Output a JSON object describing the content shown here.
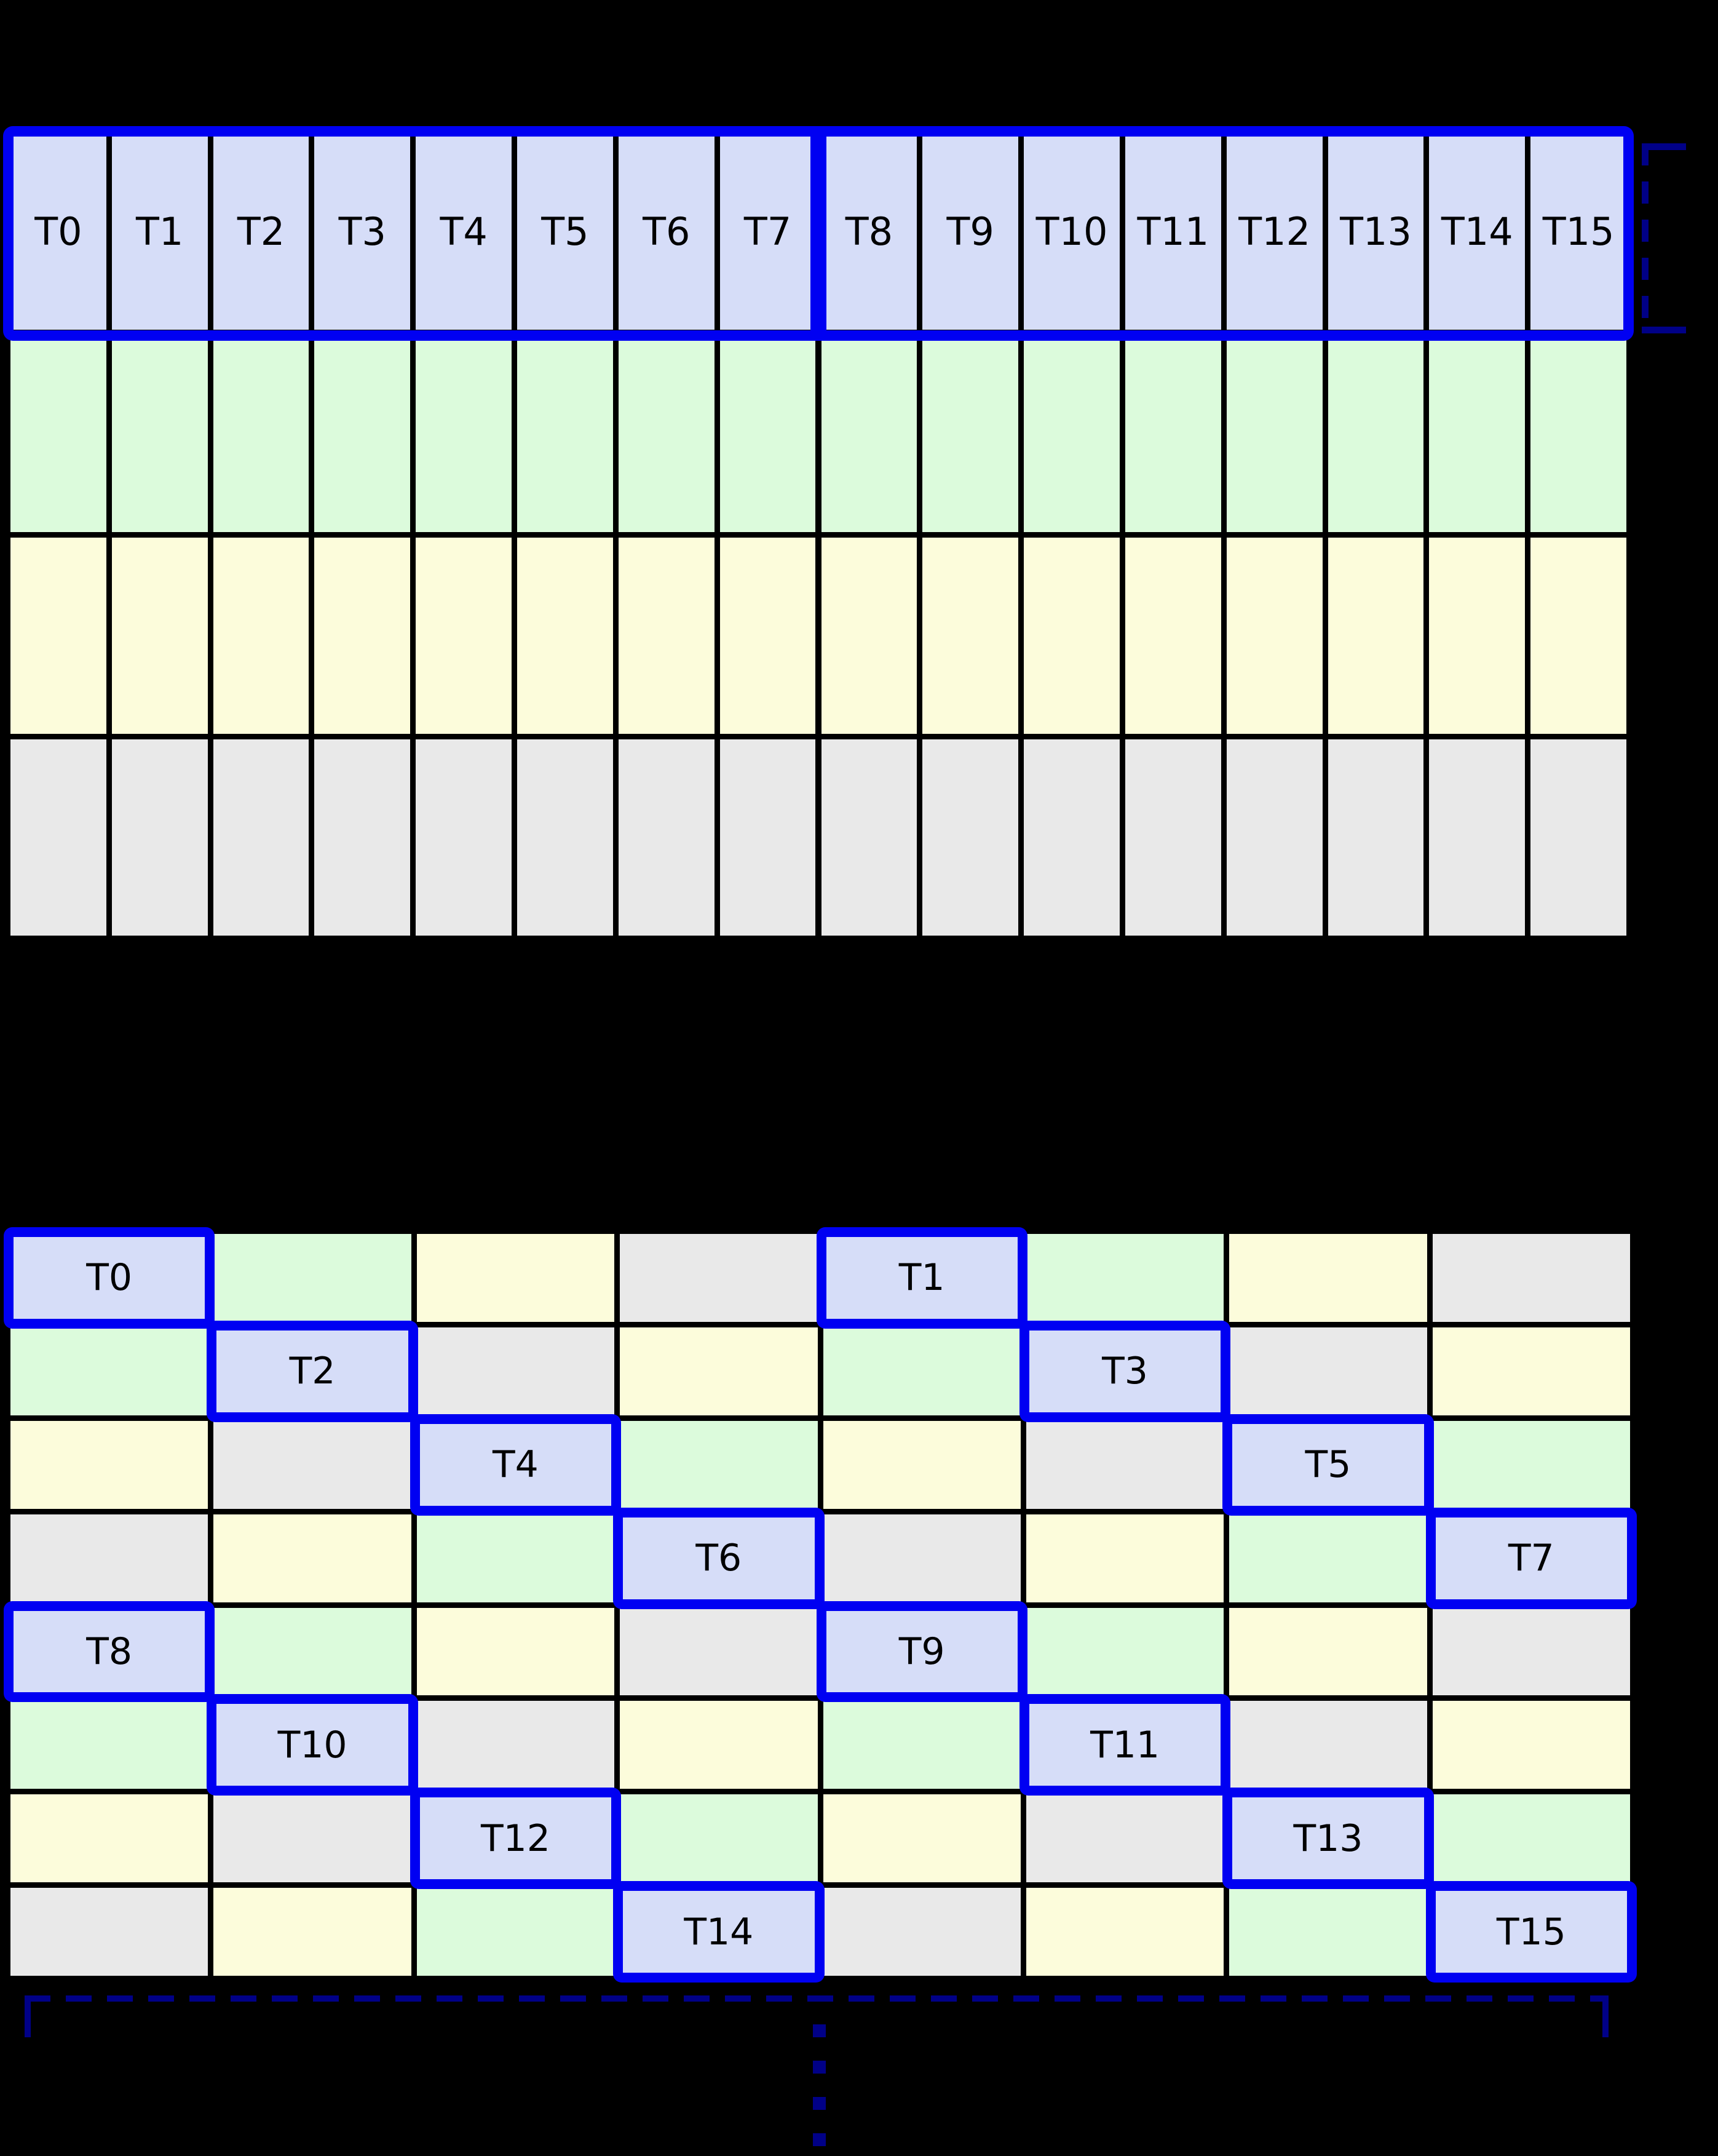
{
  "canvas": {
    "background": "#000000"
  },
  "palette": {
    "thread": "#d6ddf8",
    "green": "#dcfbdc",
    "yellow": "#fcfcdb",
    "gray": "#e9e9e9",
    "warp_border_blue": "#0000f2",
    "bracket_navy": "#000087",
    "cell_gap_black": "#000000",
    "label_black": "#000000"
  },
  "grid1": {
    "description": "16-column by 4-row array, top row of thread cells outlined in blue with a divider between T7 and T8",
    "columns": 16,
    "rows": 4,
    "row_colors": [
      "thread",
      "green",
      "yellow",
      "gray"
    ],
    "labels": [
      "T0",
      "T1",
      "T2",
      "T3",
      "T4",
      "T5",
      "T6",
      "T7",
      "T8",
      "T9",
      "T10",
      "T11",
      "T12",
      "T13",
      "T14",
      "T15"
    ]
  },
  "side_bracket": {
    "shape": "dashed-square-bracket-opening-right"
  },
  "grid2": {
    "description": "8-column by 8-row swizzled array; each row's thread cells shift diagonally",
    "columns": 8,
    "rows": 8,
    "cell_colors": [
      [
        "thread",
        "green",
        "yellow",
        "gray",
        "thread",
        "green",
        "yellow",
        "gray"
      ],
      [
        "green",
        "thread",
        "gray",
        "yellow",
        "green",
        "thread",
        "gray",
        "yellow"
      ],
      [
        "yellow",
        "gray",
        "thread",
        "green",
        "yellow",
        "gray",
        "thread",
        "green"
      ],
      [
        "gray",
        "yellow",
        "green",
        "thread",
        "gray",
        "yellow",
        "green",
        "thread"
      ],
      [
        "thread",
        "green",
        "yellow",
        "gray",
        "thread",
        "green",
        "yellow",
        "gray"
      ],
      [
        "green",
        "thread",
        "gray",
        "yellow",
        "green",
        "thread",
        "gray",
        "yellow"
      ],
      [
        "yellow",
        "gray",
        "thread",
        "green",
        "yellow",
        "gray",
        "thread",
        "green"
      ],
      [
        "gray",
        "yellow",
        "green",
        "thread",
        "gray",
        "yellow",
        "green",
        "thread"
      ]
    ],
    "threads": [
      {
        "row": 0,
        "col": 0,
        "label": "T0"
      },
      {
        "row": 0,
        "col": 4,
        "label": "T1"
      },
      {
        "row": 1,
        "col": 1,
        "label": "T2"
      },
      {
        "row": 1,
        "col": 5,
        "label": "T3"
      },
      {
        "row": 2,
        "col": 2,
        "label": "T4"
      },
      {
        "row": 2,
        "col": 6,
        "label": "T5"
      },
      {
        "row": 3,
        "col": 3,
        "label": "T6"
      },
      {
        "row": 3,
        "col": 7,
        "label": "T7"
      },
      {
        "row": 4,
        "col": 0,
        "label": "T8"
      },
      {
        "row": 4,
        "col": 4,
        "label": "T9"
      },
      {
        "row": 5,
        "col": 1,
        "label": "T10"
      },
      {
        "row": 5,
        "col": 5,
        "label": "T11"
      },
      {
        "row": 6,
        "col": 2,
        "label": "T12"
      },
      {
        "row": 6,
        "col": 6,
        "label": "T13"
      },
      {
        "row": 7,
        "col": 3,
        "label": "T14"
      },
      {
        "row": 7,
        "col": 7,
        "label": "T15"
      }
    ]
  },
  "bottom_bracket": {
    "shape": "dashed-horizontal-bracket-with-end-ticks"
  },
  "continuation_dots": {
    "shape": "vertical-dashed-ellipsis"
  }
}
